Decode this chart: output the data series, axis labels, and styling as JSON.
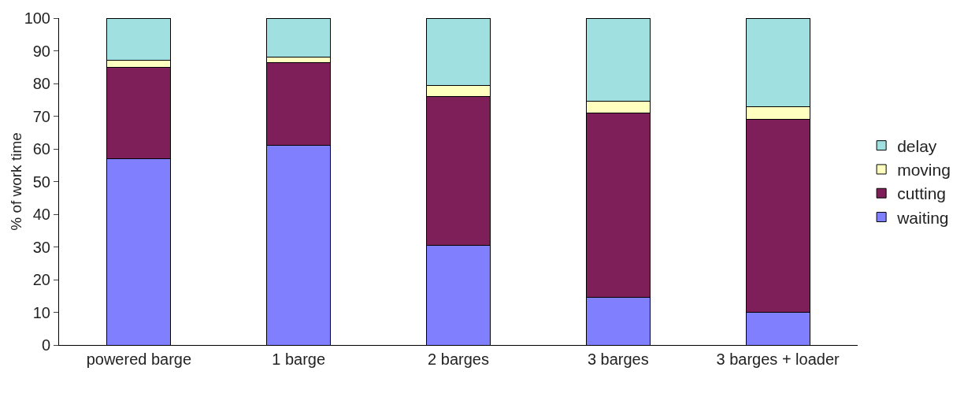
{
  "chart_data": {
    "type": "bar",
    "stacked": true,
    "ylabel": "% of work time",
    "categories": [
      "powered barge",
      "1 barge",
      "2 barges",
      "3 barges",
      "3 barges + loader"
    ],
    "series": [
      {
        "name": "waiting",
        "color": "#8080ff",
        "values": [
          57,
          61,
          30.5,
          14.5,
          10
        ]
      },
      {
        "name": "cutting",
        "color": "#7f1f5a",
        "values": [
          28,
          25.5,
          45.5,
          56.5,
          59
        ]
      },
      {
        "name": "moving",
        "color": "#ffffc0",
        "values": [
          2,
          1.5,
          3.5,
          3.5,
          4
        ]
      },
      {
        "name": "delay",
        "color": "#a0e0e0",
        "values": [
          13,
          12,
          20.5,
          25.5,
          27
        ]
      }
    ],
    "ylim": [
      0,
      100
    ],
    "yticks": [
      0,
      10,
      20,
      30,
      40,
      50,
      60,
      70,
      80,
      90,
      100
    ],
    "grid": false,
    "legend": "right"
  }
}
